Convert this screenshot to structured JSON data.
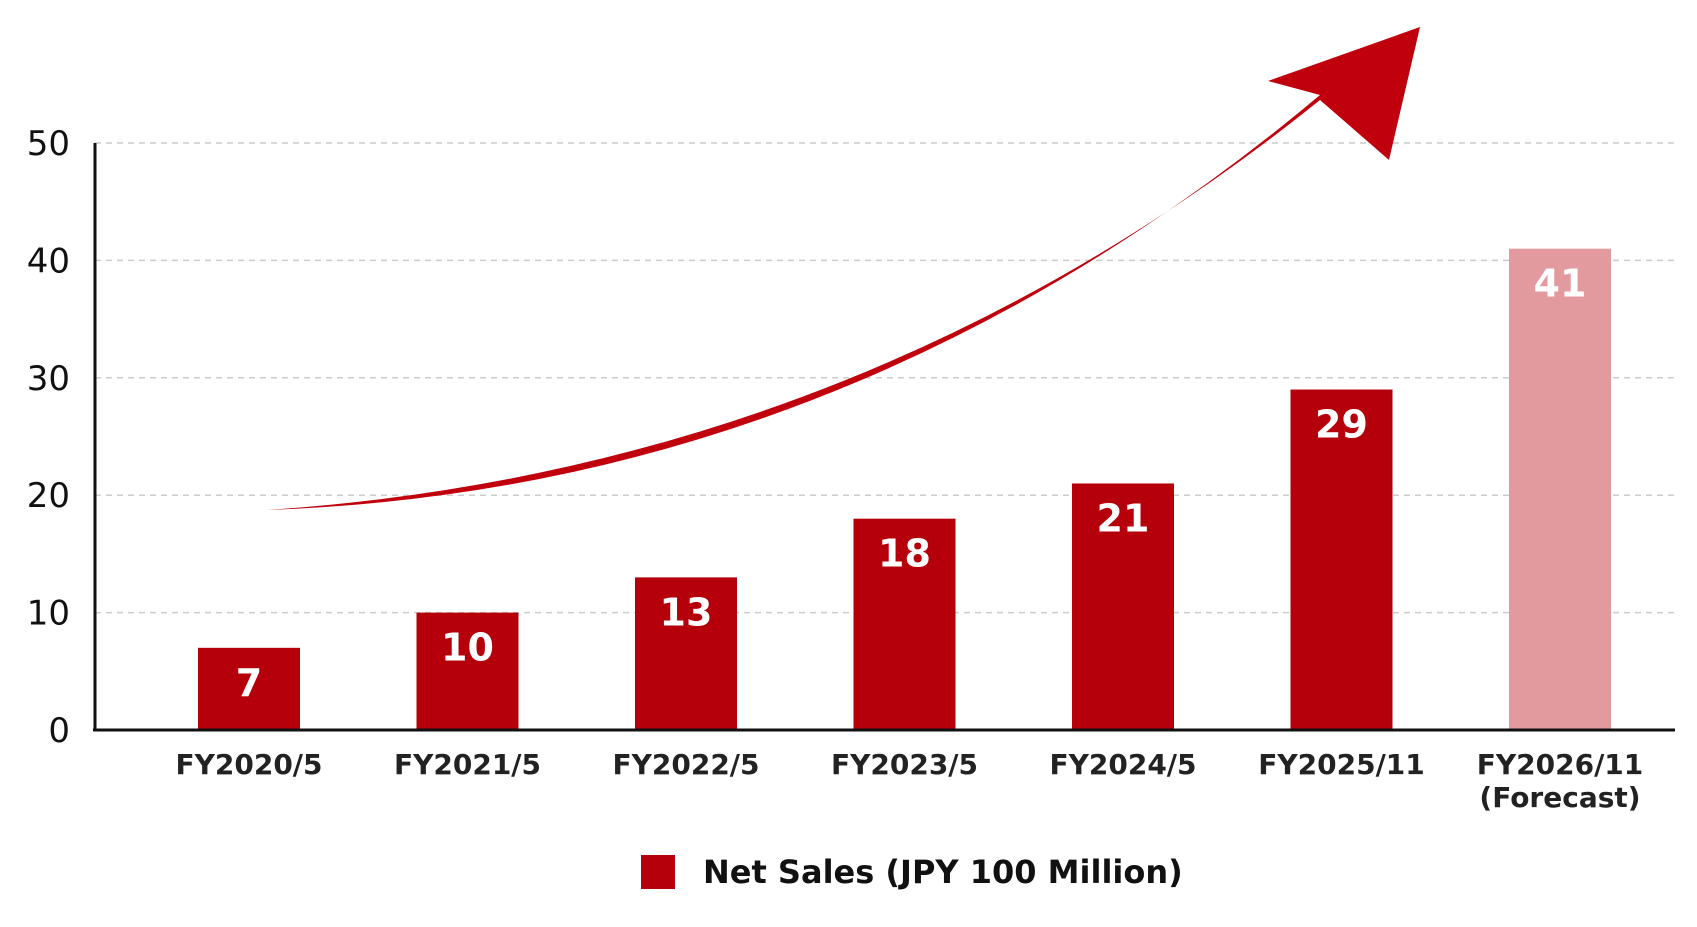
{
  "chart_data": {
    "type": "bar",
    "categories": [
      [
        "FY2020/5"
      ],
      [
        "FY2021/5"
      ],
      [
        "FY2022/5"
      ],
      [
        "FY2023/5"
      ],
      [
        "FY2024/5"
      ],
      [
        "FY2025/11"
      ],
      [
        "FY2026/11",
        "(Forecast)"
      ]
    ],
    "series": [
      {
        "name": "Net Sales (JPY 100 Million)",
        "values": [
          7,
          10,
          13,
          18,
          21,
          29,
          41
        ],
        "forecast_index": 6
      }
    ],
    "data_labels": [
      "7",
      "10",
      "13",
      "18",
      "21",
      "29",
      "41"
    ],
    "yticks": [
      0,
      10,
      20,
      30,
      40,
      50
    ],
    "ylim": [
      0,
      50
    ],
    "grid": true,
    "grid_style": "dashed-horizontal",
    "legend_position": "bottom-center",
    "trend_arrow": true,
    "colors": {
      "bar": "#B5000B",
      "forecast_bar": "#E39A9E",
      "arrow": "#C0000C",
      "grid": "#cccccc",
      "axis": "#111111"
    }
  }
}
